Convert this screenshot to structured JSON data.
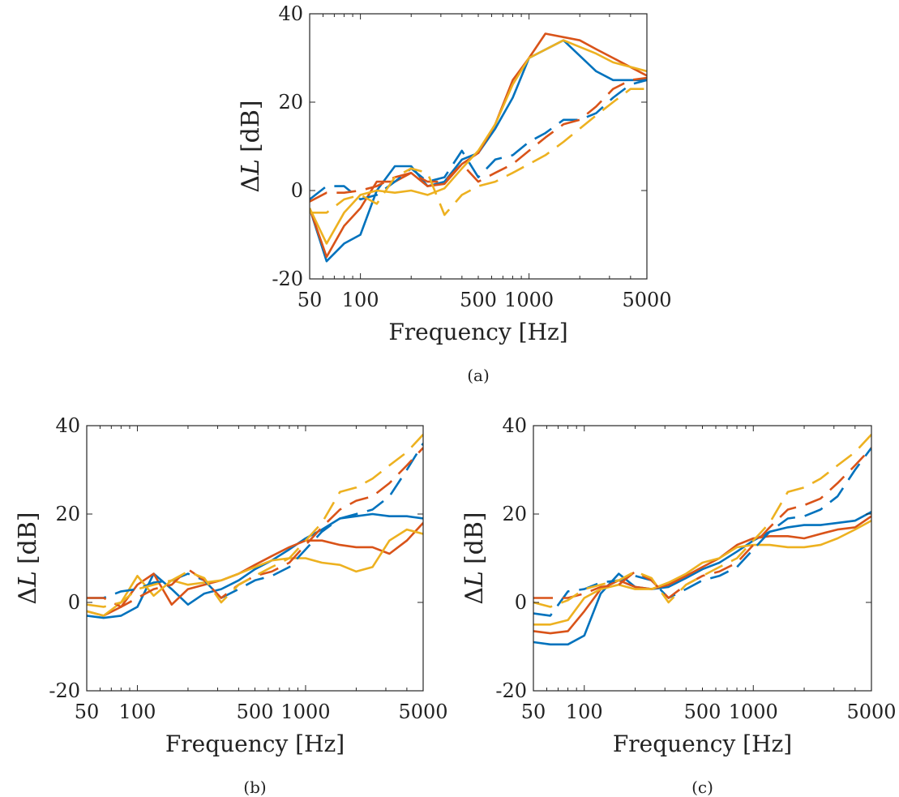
{
  "colors": {
    "blue": "#0072BD",
    "red": "#D95319",
    "yellow": "#EDB120"
  },
  "chart_data": [
    {
      "id": "a",
      "type": "line",
      "caption": "(a)",
      "xlabel": "Frequency [Hz]",
      "ylabel_symbol": "Δ",
      "ylabel_var": "L",
      "ylabel_unit": "[dB]",
      "xscale": "log",
      "xlim": [
        50,
        5000
      ],
      "ylim": [
        -20,
        40
      ],
      "xticks": [
        50,
        100,
        500,
        1000,
        5000
      ],
      "xtick_labels": [
        "50",
        "100",
        "500",
        "1000",
        "5000"
      ],
      "yticks": [
        -20,
        0,
        20,
        40
      ],
      "ytick_labels": [
        "-20",
        "0",
        "20",
        "40"
      ],
      "grid": false,
      "series": [
        {
          "color": "blue",
          "dash": false,
          "x": [
            50,
            63,
            80,
            100,
            125,
            160,
            200,
            250,
            315,
            400,
            500,
            630,
            800,
            1000,
            1600,
            2500,
            3150,
            5000
          ],
          "y": [
            -4,
            -16,
            -12,
            -10,
            0,
            5.5,
            5.5,
            1,
            2,
            7,
            8.5,
            14,
            21,
            30,
            34,
            27,
            25,
            25
          ]
        },
        {
          "color": "red",
          "dash": false,
          "x": [
            50,
            63,
            80,
            100,
            125,
            160,
            200,
            250,
            315,
            400,
            500,
            630,
            800,
            1000,
            1250,
            2000,
            2500,
            3150,
            5000
          ],
          "y": [
            -4,
            -15,
            -8,
            -4,
            2,
            2,
            4,
            1,
            1.5,
            6,
            8.5,
            15,
            25,
            30,
            35.5,
            34,
            32,
            30,
            26
          ]
        },
        {
          "color": "yellow",
          "dash": false,
          "x": [
            50,
            63,
            80,
            100,
            125,
            160,
            200,
            250,
            315,
            400,
            500,
            630,
            800,
            1000,
            1600,
            2500,
            3150,
            5000
          ],
          "y": [
            -4,
            -12,
            -5,
            -1,
            0,
            -0.5,
            0,
            -1,
            0.5,
            5,
            9,
            15,
            24,
            30,
            34,
            31,
            29,
            27
          ]
        },
        {
          "color": "blue",
          "dash": true,
          "x": [
            50,
            63,
            80,
            100,
            125,
            160,
            200,
            250,
            315,
            400,
            500,
            630,
            800,
            1000,
            1250,
            1600,
            2000,
            2500,
            3150,
            4000,
            5000
          ],
          "y": [
            -2,
            1,
            1,
            -2,
            -1,
            2,
            5,
            2,
            3,
            9,
            3,
            7,
            8,
            11,
            13,
            16,
            16,
            17.5,
            21,
            24,
            25
          ]
        },
        {
          "color": "red",
          "dash": true,
          "x": [
            50,
            63,
            80,
            100,
            125,
            160,
            200,
            250,
            315,
            400,
            500,
            630,
            800,
            1000,
            1250,
            1600,
            2000,
            2500,
            3150,
            4000,
            5000
          ],
          "y": [
            -2.5,
            -0.5,
            -0.5,
            0,
            1,
            3,
            4,
            2,
            2,
            6,
            2,
            4,
            6,
            9,
            12,
            15,
            16,
            19,
            23,
            25,
            25.5
          ]
        },
        {
          "color": "yellow",
          "dash": true,
          "x": [
            50,
            63,
            80,
            100,
            125,
            160,
            200,
            250,
            315,
            400,
            500,
            630,
            800,
            1000,
            1250,
            1600,
            2000,
            2500,
            3150,
            4000,
            5000
          ],
          "y": [
            -5,
            -5,
            -2,
            -1,
            -3,
            3,
            5,
            4,
            -5.5,
            -1,
            1,
            2,
            4,
            6,
            8,
            11,
            14,
            17,
            20,
            23,
            23
          ]
        }
      ]
    },
    {
      "id": "b",
      "type": "line",
      "caption": "(b)",
      "xlabel": "Frequency [Hz]",
      "ylabel_symbol": "Δ",
      "ylabel_var": "L",
      "ylabel_unit": "[dB]",
      "xscale": "log",
      "xlim": [
        50,
        5000
      ],
      "ylim": [
        -20,
        40
      ],
      "xticks": [
        50,
        100,
        500,
        1000,
        5000
      ],
      "xtick_labels": [
        "50",
        "100",
        "500",
        "1000",
        "5000"
      ],
      "yticks": [
        -20,
        0,
        20,
        40
      ],
      "ytick_labels": [
        "-20",
        "0",
        "20",
        "40"
      ],
      "grid": false,
      "series": [
        {
          "color": "blue",
          "dash": false,
          "x": [
            50,
            63,
            80,
            100,
            125,
            160,
            200,
            250,
            315,
            400,
            500,
            630,
            800,
            1000,
            1250,
            1600,
            2000,
            2500,
            3150,
            4000,
            5000
          ],
          "y": [
            -3,
            -3.5,
            -3,
            -1,
            6.5,
            3,
            -0.5,
            2,
            3,
            5,
            7.5,
            9.5,
            12,
            14.5,
            16.5,
            19,
            19.5,
            20,
            19.5,
            19.5,
            19
          ]
        },
        {
          "color": "red",
          "dash": false,
          "x": [
            50,
            63,
            80,
            100,
            125,
            160,
            200,
            250,
            315,
            400,
            500,
            630,
            800,
            1000,
            1250,
            1600,
            2000,
            2500,
            3150,
            4000,
            5000
          ],
          "y": [
            -2,
            -3,
            -1,
            4,
            6.5,
            -0.5,
            3,
            4,
            5,
            6.5,
            8.5,
            10.5,
            12.5,
            14,
            14,
            13,
            12.5,
            12.5,
            11,
            14,
            18
          ]
        },
        {
          "color": "yellow",
          "dash": false,
          "x": [
            50,
            63,
            80,
            100,
            125,
            160,
            200,
            250,
            315,
            400,
            500,
            630,
            800,
            1000,
            1250,
            1600,
            2000,
            2500,
            3150,
            4000,
            5000
          ],
          "y": [
            -2,
            -3,
            0,
            6,
            1.5,
            5,
            4,
            4.5,
            5,
            6.5,
            8,
            9.5,
            10,
            10,
            9,
            8.5,
            7,
            8,
            14,
            16.5,
            15.5
          ]
        },
        {
          "color": "blue",
          "dash": true,
          "x": [
            50,
            63,
            80,
            100,
            125,
            160,
            200,
            250,
            315,
            400,
            500,
            630,
            800,
            1000,
            1250,
            1600,
            2000,
            2500,
            3150,
            4000,
            5000
          ],
          "y": [
            1,
            1,
            2.5,
            3,
            4.5,
            5,
            6.5,
            5,
            1,
            3,
            5,
            6,
            8,
            12,
            16,
            19,
            20,
            21,
            24,
            30,
            36
          ]
        },
        {
          "color": "red",
          "dash": true,
          "x": [
            50,
            63,
            80,
            100,
            125,
            160,
            200,
            250,
            315,
            400,
            500,
            630,
            800,
            1000,
            1250,
            1600,
            2000,
            2500,
            3150,
            4000,
            5000
          ],
          "y": [
            1,
            1,
            -1,
            1,
            3,
            4,
            7.5,
            5,
            1,
            4,
            6,
            7,
            9,
            13,
            17,
            21,
            23,
            24,
            27,
            31,
            35
          ]
        },
        {
          "color": "yellow",
          "dash": true,
          "x": [
            50,
            63,
            80,
            100,
            125,
            160,
            200,
            250,
            315,
            400,
            500,
            630,
            800,
            1000,
            1250,
            1600,
            2000,
            2500,
            3150,
            4000,
            5000
          ],
          "y": [
            -0.5,
            -1,
            0,
            3,
            4,
            5,
            7,
            5.5,
            0,
            4,
            6,
            8,
            10,
            14,
            18,
            25,
            26,
            28,
            31,
            34,
            38
          ]
        }
      ]
    },
    {
      "id": "c",
      "type": "line",
      "caption": "(c)",
      "xlabel": "Frequency [Hz]",
      "ylabel_symbol": "Δ",
      "ylabel_var": "L",
      "ylabel_unit": "[dB]",
      "xscale": "log",
      "xlim": [
        50,
        5000
      ],
      "ylim": [
        -20,
        40
      ],
      "xticks": [
        50,
        100,
        500,
        1000,
        5000
      ],
      "xtick_labels": [
        "50",
        "100",
        "500",
        "1000",
        "5000"
      ],
      "yticks": [
        -20,
        0,
        20,
        40
      ],
      "ytick_labels": [
        "-20",
        "0",
        "20",
        "40"
      ],
      "grid": false,
      "series": [
        {
          "color": "blue",
          "dash": false,
          "x": [
            50,
            63,
            80,
            100,
            125,
            160,
            200,
            250,
            315,
            400,
            500,
            630,
            800,
            1000,
            1250,
            1600,
            2000,
            2500,
            3150,
            4000,
            5000
          ],
          "y": [
            -9,
            -9.5,
            -9.5,
            -7.5,
            2,
            6.5,
            3.5,
            3,
            3.5,
            5.5,
            7.5,
            9,
            11.5,
            14,
            16,
            17,
            17.5,
            17.5,
            18,
            18.5,
            20.5
          ]
        },
        {
          "color": "red",
          "dash": false,
          "x": [
            50,
            63,
            80,
            100,
            125,
            160,
            200,
            250,
            315,
            400,
            500,
            630,
            800,
            1000,
            1250,
            1600,
            2000,
            2500,
            3150,
            4000,
            5000
          ],
          "y": [
            -6.5,
            -7,
            -6.5,
            -2,
            3,
            5,
            3.5,
            3,
            4,
            6,
            8,
            10,
            13,
            14.5,
            15,
            15,
            14.5,
            15.5,
            16.5,
            17,
            19.5
          ]
        },
        {
          "color": "yellow",
          "dash": false,
          "x": [
            50,
            63,
            80,
            100,
            125,
            160,
            200,
            250,
            315,
            400,
            500,
            630,
            800,
            1000,
            1250,
            1600,
            2000,
            2500,
            3150,
            4000,
            5000
          ],
          "y": [
            -5,
            -5,
            -4,
            1,
            3,
            4,
            3,
            3,
            4.5,
            6.5,
            9,
            10,
            12.5,
            13,
            13,
            12.5,
            12.5,
            13,
            14.5,
            16.5,
            18.5
          ]
        },
        {
          "color": "blue",
          "dash": true,
          "x": [
            50,
            63,
            80,
            100,
            125,
            160,
            200,
            250,
            315,
            400,
            500,
            630,
            800,
            1000,
            1250,
            1600,
            2000,
            2500,
            3150,
            4000,
            5000
          ],
          "y": [
            -2.5,
            -3,
            2.5,
            3,
            4.5,
            5,
            6,
            5,
            1,
            3,
            5,
            6,
            8,
            12,
            16,
            19,
            19.5,
            21,
            24,
            30,
            35
          ]
        },
        {
          "color": "red",
          "dash": true,
          "x": [
            50,
            63,
            80,
            100,
            125,
            160,
            200,
            250,
            315,
            400,
            500,
            630,
            800,
            1000,
            1250,
            1600,
            2000,
            2500,
            3150,
            4000,
            5000
          ],
          "y": [
            1,
            1,
            1,
            2,
            3.5,
            4,
            7,
            5,
            1,
            4,
            6,
            7,
            9,
            13,
            17,
            21,
            22,
            23.5,
            27,
            31,
            35
          ]
        },
        {
          "color": "yellow",
          "dash": true,
          "x": [
            50,
            63,
            80,
            100,
            125,
            160,
            200,
            250,
            315,
            400,
            500,
            630,
            800,
            1000,
            1250,
            1600,
            2000,
            2500,
            3150,
            4000,
            5000
          ],
          "y": [
            0,
            -1,
            0.5,
            3,
            4,
            5,
            7,
            5.5,
            0,
            4,
            6,
            8,
            10,
            14,
            18,
            25,
            26,
            28,
            31,
            34,
            38
          ]
        }
      ]
    }
  ]
}
